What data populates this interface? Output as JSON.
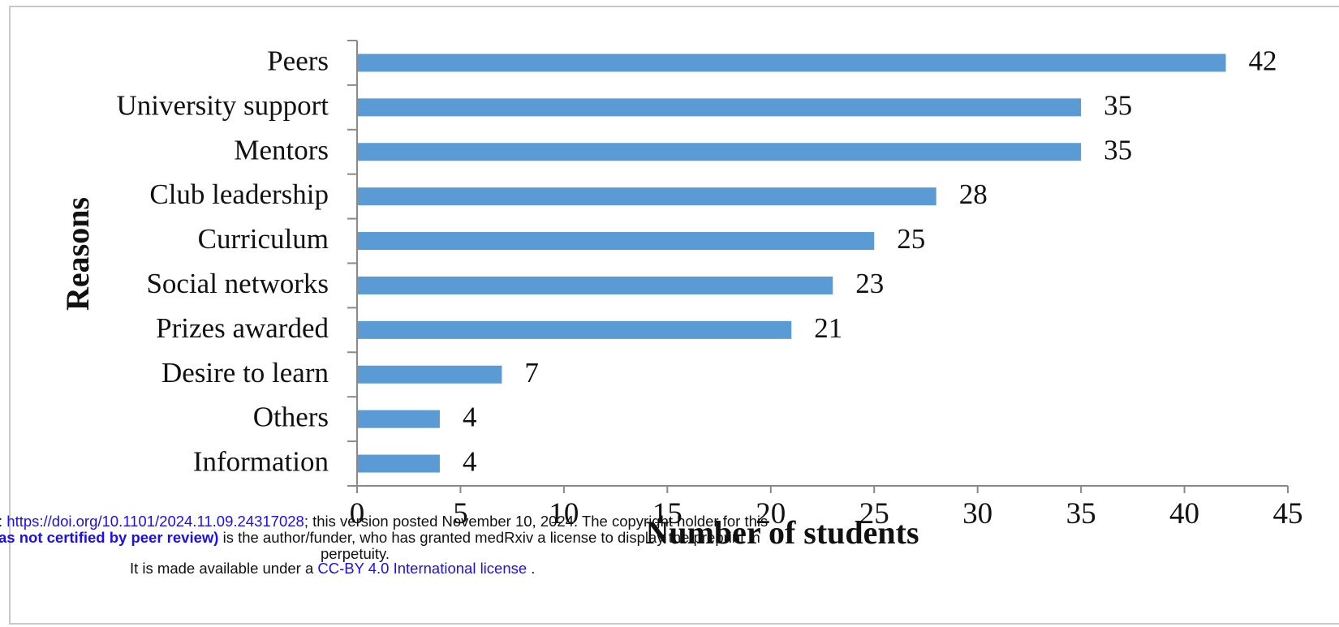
{
  "chart_data": {
    "type": "bar",
    "orientation": "horizontal",
    "categories": [
      "Peers",
      "University support",
      "Mentors",
      "Club leadership",
      "Curriculum",
      "Social networks",
      "Prizes awarded",
      "Desire to learn",
      "Others",
      "Information"
    ],
    "values": [
      42,
      35,
      35,
      28,
      25,
      23,
      21,
      7,
      4,
      4
    ],
    "data_labels": [
      "42",
      "35",
      "35",
      "28",
      "25",
      "23",
      "21",
      "7",
      "4",
      "4"
    ],
    "xlabel": "Number of students",
    "ylabel": "Reasons",
    "xlim": [
      0,
      45
    ],
    "x_ticks": [
      "0",
      "5",
      "10",
      "15",
      "20",
      "25",
      "30",
      "35",
      "40",
      "45"
    ],
    "bar_color": "#5b9bd5",
    "grid": false,
    "legend": "none"
  },
  "watermark": {
    "line1_prefix": ": ",
    "doi_link": "https://doi.org/10.1101/2024.11.09.24317028",
    "line1_suffix": "; this version posted November 10, 2024. The copyright holder for this",
    "line2_bold": "as not certified by peer review)",
    "line2_rest": " is the author/funder, who has granted medRxiv a license to display the preprint in",
    "line3": "perpetuity.",
    "line4_prefix": "It is made available under a ",
    "license_link": "CC-BY 4.0 International license",
    "line4_suffix": " ."
  }
}
